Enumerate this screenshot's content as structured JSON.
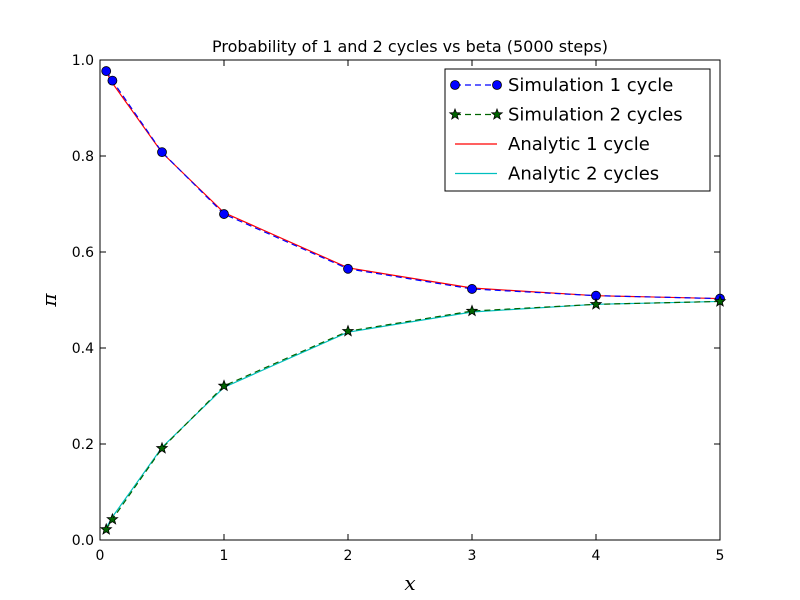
{
  "chart_data": {
    "type": "line",
    "title": "Probability of 1 and 2 cycles vs beta  (5000 steps)",
    "xlabel": "x",
    "ylabel": "π",
    "xlim": [
      0,
      5
    ],
    "ylim": [
      0.0,
      1.0
    ],
    "xticks": [
      0,
      1,
      2,
      3,
      4,
      5
    ],
    "xtick_labels": [
      "0",
      "1",
      "2",
      "3",
      "4",
      "5"
    ],
    "yticks": [
      0.0,
      0.2,
      0.4,
      0.6,
      0.8,
      1.0
    ],
    "ytick_labels": [
      "0.0",
      "0.2",
      "0.4",
      "0.6",
      "0.8",
      "1.0"
    ],
    "grid": false,
    "legend_position": "top-right",
    "series": [
      {
        "name": "Simulation 1 cycle",
        "color": "#0000ff",
        "linestyle": "dashed",
        "marker": "circle",
        "x": [
          0.05,
          0.1,
          0.5,
          1,
          2,
          3,
          4,
          5
        ],
        "values": [
          0.977,
          0.957,
          0.808,
          0.679,
          0.565,
          0.523,
          0.509,
          0.503
        ]
      },
      {
        "name": "Simulation 2 cycles",
        "color": "#006400",
        "linestyle": "dashed",
        "marker": "star",
        "x": [
          0.05,
          0.1,
          0.5,
          1,
          2,
          3,
          4,
          5
        ],
        "values": [
          0.022,
          0.043,
          0.191,
          0.321,
          0.435,
          0.477,
          0.491,
          0.497
        ]
      },
      {
        "name": "Analytic 1 cycle",
        "color": "#ff0000",
        "linestyle": "solid",
        "marker": "none",
        "x": [
          0.05,
          0.1,
          0.5,
          1,
          2,
          3,
          4,
          5
        ],
        "values": [
          0.975,
          0.952,
          0.807,
          0.682,
          0.567,
          0.525,
          0.509,
          0.503
        ]
      },
      {
        "name": "Analytic 2 cycles",
        "color": "#00bfbf",
        "linestyle": "solid",
        "marker": "none",
        "x": [
          0.05,
          0.1,
          0.5,
          1,
          2,
          3,
          4,
          5
        ],
        "values": [
          0.025,
          0.048,
          0.193,
          0.318,
          0.433,
          0.475,
          0.491,
          0.497
        ]
      }
    ]
  }
}
